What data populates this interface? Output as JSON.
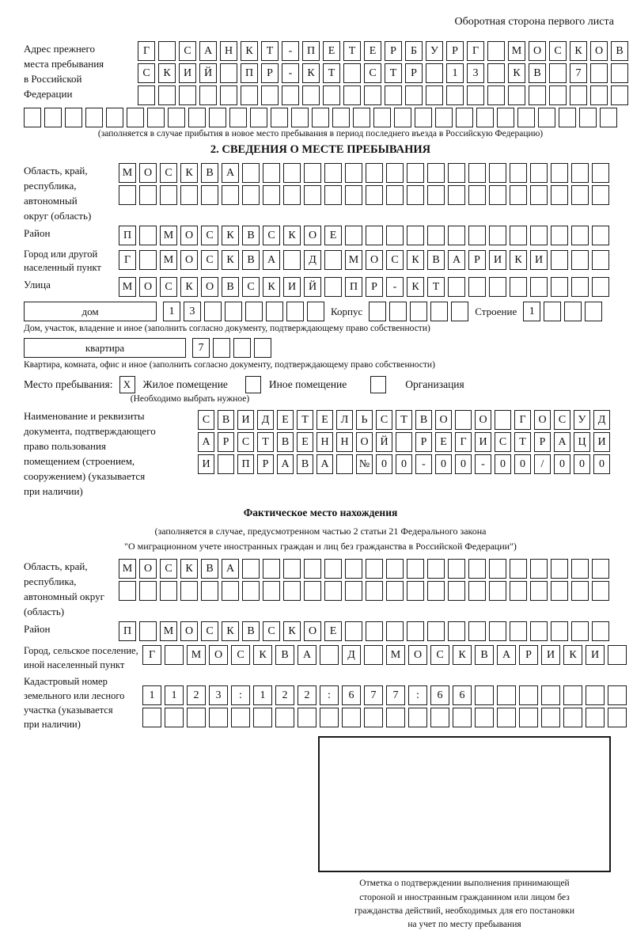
{
  "page": {
    "back_header": "Оборотная сторона первого листа"
  },
  "prev_address": {
    "label": "Адрес прежнего\nместа пребывания\nв Российской\nФедерации",
    "rows": [
      {
        "len": 24,
        "text": "Г САНКТ-ПЕТЕРБУРГ МОСКОВ"
      },
      {
        "len": 24,
        "text": "СКИЙ ПР-КТ СТР 13 КВ 7"
      },
      {
        "len": 24,
        "text": ""
      },
      {
        "len": 29,
        "text": ""
      }
    ],
    "note": "(заполняется в случае прибытия в новое место пребывания в период последнего въезда в Российскую Федерацию)"
  },
  "section2": {
    "title": "2. СВЕДЕНИЯ О МЕСТЕ ПРЕБЫВАНИЯ",
    "oblast": {
      "label": "Область, край,\nреспублика,\nавтономный\nокруг (область)",
      "rows": [
        {
          "len": 24,
          "text": "МОСКВА"
        },
        {
          "len": 24,
          "text": ""
        }
      ]
    },
    "rayon": {
      "label": "Район",
      "row": {
        "len": 24,
        "text": "П МОСКВСКОЕ"
      }
    },
    "gorod": {
      "label": "Город или другой\nнаселенный пункт",
      "row": {
        "len": 24,
        "text": "Г МОСКВА Д МОСКВАРИКИ"
      }
    },
    "ulitsa": {
      "label": "Улица",
      "row": {
        "len": 24,
        "text": "МОСКОВСКИЙ ПР-КТ"
      }
    },
    "dom": {
      "label": "дом",
      "row": {
        "len": 8,
        "text": "13"
      }
    },
    "korpus": {
      "label": "Корпус",
      "row": {
        "len": 5,
        "text": ""
      }
    },
    "stroenie": {
      "label": "Строение",
      "row": {
        "len": 4,
        "text": "1"
      }
    },
    "note_dom": "Дом, участок, владение и иное (заполнить согласно документу, подтверждающему право собственности)",
    "kvartira": {
      "label": "квартира",
      "row": {
        "len": 4,
        "text": "7"
      }
    },
    "note_kvartira": "Квартира, комната, офис и иное (заполнить согласно документу, подтверждающему право собственности)",
    "stay": {
      "label": "Место пребывания:",
      "options": [
        {
          "label": "Жилое помещение",
          "checked": "X"
        },
        {
          "label": "Иное помещение",
          "checked": ""
        },
        {
          "label": "Организация",
          "checked": ""
        }
      ],
      "note": "(Необходимо выбрать нужное)"
    },
    "doc": {
      "label": "Наименование и реквизиты\nдокумента, подтверждающего\nправо пользования\nпомещением (строением,\nсооружением) (указывается\nпри наличии)",
      "rows": [
        {
          "len": 21,
          "text": "СВИДЕТЕЛЬСТВО О ГОСУД"
        },
        {
          "len": 21,
          "text": "АРСТВЕННОЙ РЕГИСТРАЦИ"
        },
        {
          "len": 21,
          "text": "И ПРАВА №00-00-00/000"
        }
      ]
    }
  },
  "fact": {
    "title": "Фактическое место нахождения",
    "note": "(заполняется в случае, предусмотренном частью 2 статьи 21 Федерального закона\n\"О миграционном учете иностранных граждан и лиц без гражданства в Российской Федерации\")",
    "oblast": {
      "label": "Область, край,\nреспублика,\nавтономный округ\n(область)",
      "rows": [
        {
          "len": 24,
          "text": "МОСКВА"
        },
        {
          "len": 24,
          "text": ""
        }
      ]
    },
    "rayon": {
      "label": "Район",
      "row": {
        "len": 24,
        "text": "П МОСКВСКОЕ"
      }
    },
    "gorod": {
      "label": "Город, сельское поселение,\nиной населенный пункт",
      "row": {
        "len": 22,
        "text": "Г МОСКВА Д МОСКВАРИКИ"
      }
    },
    "kadastr": {
      "label": "Кадастровый номер\nземельного или лесного\nучастка (указывается\nпри наличии)",
      "rows": [
        {
          "len": 22,
          "text": "1123:122:677:66"
        },
        {
          "len": 22,
          "text": ""
        }
      ]
    }
  },
  "stamp": {
    "caption": "Отметка о подтверждении выполнения принимающей\nстороной и иностранным гражданином или лицом без\nгражданства действий, необходимых для его постановки\nна учет по месту пребывания"
  }
}
